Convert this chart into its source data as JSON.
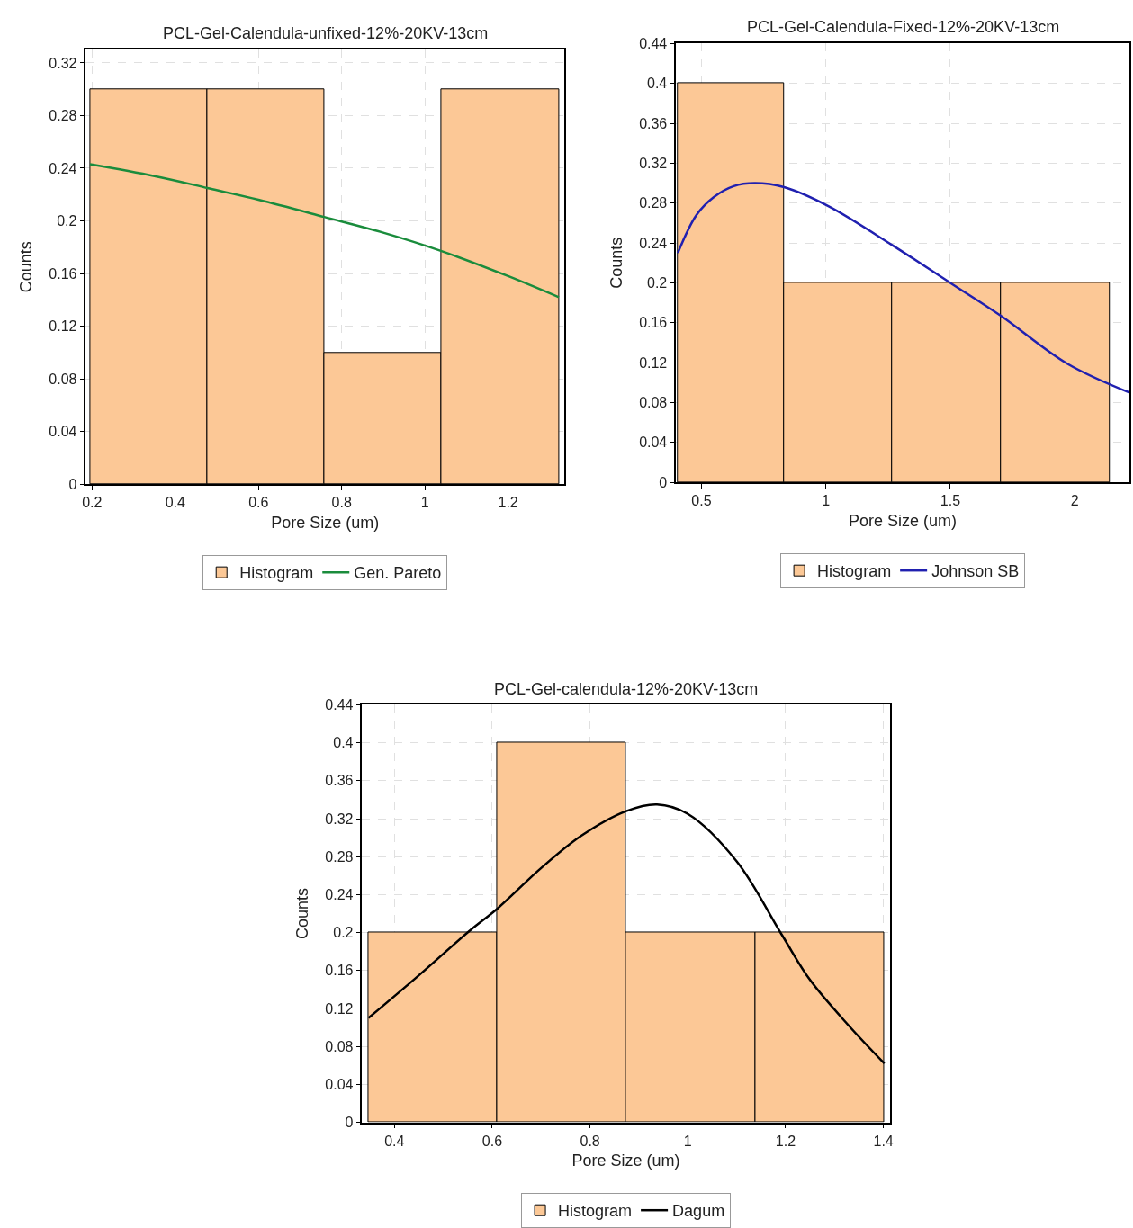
{
  "chart_data": [
    {
      "type": "histogram",
      "title": "PCL-Gel-Calendula-unfixed-12%-20KV-13cm",
      "xlabel": "Pore Size (um)",
      "ylabel": "Counts",
      "bins": [
        0.195,
        0.477,
        0.758,
        1.04,
        1.322
      ],
      "series": [
        {
          "name": "Histogram",
          "color": "#fcc896",
          "values": [
            0.3,
            0.3,
            0.1,
            0.3
          ]
        },
        {
          "name": "Gen. Pareto",
          "type": "line",
          "color": "#1a8c3c",
          "x": [
            0.195,
            0.35,
            0.477,
            0.6,
            0.758,
            0.9,
            1.04,
            1.2,
            1.322
          ],
          "values": [
            0.243,
            0.234,
            0.225,
            0.216,
            0.203,
            0.191,
            0.177,
            0.158,
            0.142
          ]
        }
      ],
      "xlim": [
        0.185,
        1.335
      ],
      "ylim": [
        0,
        0.33
      ],
      "xticks": [
        0.2,
        0.4,
        0.6,
        0.8,
        1,
        1.2
      ],
      "yticks": [
        0,
        0.04,
        0.08,
        0.12,
        0.16,
        0.2,
        0.24,
        0.28,
        0.32
      ],
      "grid": true,
      "legend": "bottom",
      "line_style": "solid",
      "marker": "none"
    },
    {
      "type": "histogram",
      "title": "PCL-Gel-Calendula-Fixed-12%-20KV-13cm",
      "xlabel": "Pore Size (um)",
      "ylabel": "Counts",
      "bins": [
        0.405,
        0.832,
        1.266,
        1.703,
        2.14
      ],
      "series": [
        {
          "name": "Histogram",
          "color": "#fcc896",
          "values": [
            0.4,
            0.2,
            0.2,
            0.2
          ]
        },
        {
          "name": "Johnson SB",
          "type": "line",
          "color": "#2020b0",
          "x": [
            0.405,
            0.48,
            0.55,
            0.63,
            0.714,
            0.832,
            1.01,
            1.266,
            1.5,
            1.703,
            1.97,
            2.22
          ],
          "values": [
            0.23,
            0.268,
            0.286,
            0.297,
            0.3,
            0.296,
            0.277,
            0.238,
            0.2,
            0.167,
            0.119,
            0.09
          ]
        }
      ],
      "xlim": [
        0.398,
        2.22
      ],
      "ylim": [
        0,
        0.44
      ],
      "xticks": [
        0.5,
        1,
        1.5,
        2
      ],
      "yticks": [
        0,
        0.04,
        0.08,
        0.12,
        0.16,
        0.2,
        0.24,
        0.28,
        0.32,
        0.36,
        0.4,
        0.44
      ],
      "grid": true,
      "legend": "bottom",
      "line_style": "solid",
      "marker": "none"
    },
    {
      "type": "histogram",
      "title": "PCL-Gel-calendula-12%-20KV-13cm",
      "xlabel": "Pore Size (um)",
      "ylabel": "Counts",
      "bins": [
        0.347,
        0.61,
        0.874,
        1.139,
        1.402
      ],
      "series": [
        {
          "name": "Histogram",
          "color": "#fcc896",
          "values": [
            0.2,
            0.4,
            0.2,
            0.2
          ]
        },
        {
          "name": "Dagum",
          "type": "line",
          "color": "#000000",
          "x": [
            0.347,
            0.45,
            0.554,
            0.61,
            0.7,
            0.782,
            0.874,
            0.937,
            1.0,
            1.1,
            1.193,
            1.25,
            1.329,
            1.402
          ],
          "values": [
            0.11,
            0.155,
            0.202,
            0.225,
            0.268,
            0.302,
            0.328,
            0.335,
            0.325,
            0.275,
            0.197,
            0.15,
            0.102,
            0.062
          ]
        }
      ],
      "xlim": [
        0.334,
        1.413
      ],
      "ylim": [
        0,
        0.44
      ],
      "xticks": [
        0.4,
        0.6,
        0.8,
        1,
        1.2,
        1.4
      ],
      "yticks": [
        0,
        0.04,
        0.08,
        0.12,
        0.16,
        0.2,
        0.24,
        0.28,
        0.32,
        0.36,
        0.4,
        0.44
      ],
      "grid": true,
      "legend": "bottom",
      "line_style": "solid",
      "marker": "none"
    }
  ]
}
